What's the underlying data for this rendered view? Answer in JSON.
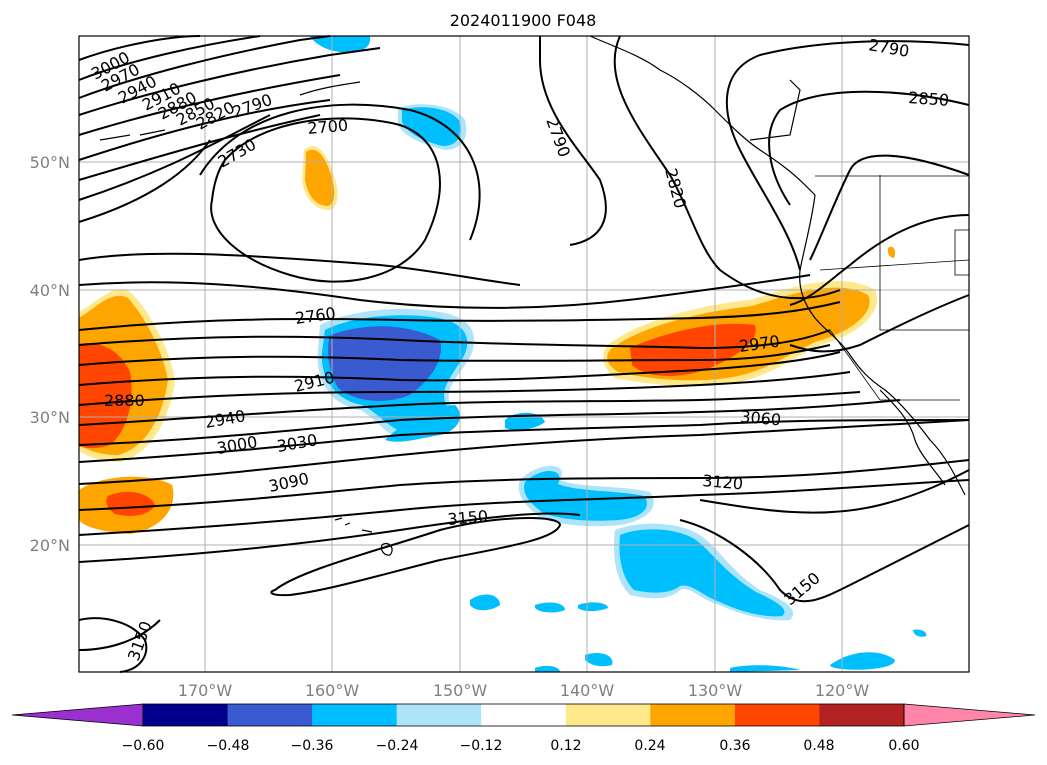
{
  "title": "2024011900 F048",
  "map": {
    "lat_ticks": [
      "50°N",
      "40°N",
      "30°N",
      "20°N"
    ],
    "lon_ticks": [
      "170°W",
      "160°W",
      "150°W",
      "140°W",
      "130°W",
      "120°W"
    ],
    "grid": true
  },
  "contour_labels": [
    "3000",
    "2970",
    "2940",
    "2910",
    "2880",
    "2850",
    "2820",
    "2790",
    "2730",
    "2700",
    "2790",
    "2820",
    "2790",
    "2850",
    "2760",
    "2910",
    "2880",
    "2940",
    "3000",
    "3030",
    "3090",
    "3150",
    "3150",
    "2970",
    "3060",
    "3120",
    "3150"
  ],
  "colorbar": {
    "ticks": [
      "−0.60",
      "−0.48",
      "−0.36",
      "−0.24",
      "−0.12",
      "0.12",
      "0.24",
      "0.36",
      "0.48",
      "0.60"
    ],
    "colors": [
      "#9b30d0",
      "#00008b",
      "#3a5bd0",
      "#00bfff",
      "#aee4fa",
      "#ffffff",
      "#ffe88a",
      "#ffa500",
      "#ff4500",
      "#b22222",
      "#ff86a8"
    ],
    "extend": "both"
  },
  "colors": {
    "blue_light": "#aee4fa",
    "blue": "#00bfff",
    "blue_dark": "#3a5bd0",
    "yellow": "#ffe88a",
    "orange": "#ffa500",
    "red_orange": "#ff4500"
  }
}
